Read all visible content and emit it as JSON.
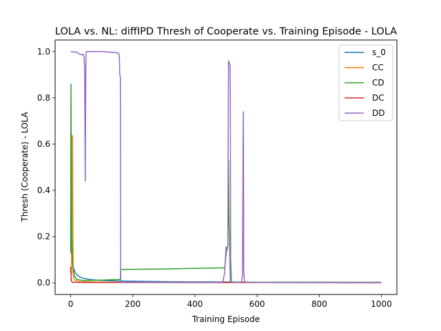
{
  "chart_data": {
    "type": "line",
    "title": "LOLA vs. NL: diffIPD Thresh of Cooperate vs. Training Episode - LOLA",
    "xlabel": "Training Episode",
    "ylabel": "Thresh (Cooperate) - LOLA",
    "xlim": [
      -50,
      1050
    ],
    "ylim": [
      -0.05,
      1.05
    ],
    "xticks": [
      0,
      200,
      400,
      600,
      800,
      1000
    ],
    "yticks": [
      0.0,
      0.2,
      0.4,
      0.6,
      0.8,
      1.0
    ],
    "xtick_labels": [
      "0",
      "200",
      "400",
      "600",
      "800",
      "1000"
    ],
    "ytick_labels": [
      "0.0",
      "0.2",
      "0.4",
      "0.6",
      "0.8",
      "1.0"
    ],
    "grid": false,
    "legend_position": "top-right",
    "series": [
      {
        "name": "s_0",
        "color": "#1f77b4",
        "points": [
          [
            0,
            0.31
          ],
          [
            1,
            0.2
          ],
          [
            2,
            0.14
          ],
          [
            4,
            0.1
          ],
          [
            6,
            0.08
          ],
          [
            10,
            0.06
          ],
          [
            15,
            0.045
          ],
          [
            20,
            0.035
          ],
          [
            30,
            0.025
          ],
          [
            40,
            0.02
          ],
          [
            60,
            0.015
          ],
          [
            100,
            0.01
          ],
          [
            160,
            0.008
          ],
          [
            300,
            0.005
          ],
          [
            500,
            0.004
          ],
          [
            600,
            0.003
          ],
          [
            1000,
            0.002
          ]
        ]
      },
      {
        "name": "CC",
        "color": "#ff7f0e",
        "points": [
          [
            0,
            0.07
          ],
          [
            1,
            0.05
          ],
          [
            3,
            0.04
          ],
          [
            4,
            0.64
          ],
          [
            6,
            0.63
          ],
          [
            8,
            0.05
          ],
          [
            10,
            0.02
          ],
          [
            15,
            0.01
          ],
          [
            30,
            0.005
          ],
          [
            100,
            0.003
          ],
          [
            300,
            0.002
          ],
          [
            1000,
            0.001
          ]
        ]
      },
      {
        "name": "CD",
        "color": "#2ca02c",
        "points": [
          [
            0,
            0.13
          ],
          [
            1,
            0.86
          ],
          [
            2,
            0.5
          ],
          [
            3,
            0.25
          ],
          [
            5,
            0.12
          ],
          [
            8,
            0.06
          ],
          [
            12,
            0.03
          ],
          [
            20,
            0.015
          ],
          [
            40,
            0.01
          ],
          [
            100,
            0.012
          ],
          [
            160,
            0.015
          ],
          [
            161,
            0.058
          ],
          [
            300,
            0.06
          ],
          [
            496,
            0.065
          ],
          [
            500,
            0.12
          ],
          [
            503,
            0.15
          ],
          [
            506,
            0.16
          ],
          [
            508,
            0.53
          ],
          [
            510,
            0.25
          ],
          [
            512,
            0.15
          ],
          [
            514,
            0.005
          ],
          [
            520,
            0.003
          ],
          [
            1000,
            0.002
          ]
        ]
      },
      {
        "name": "DC",
        "color": "#d62728",
        "points": [
          [
            0,
            0.07
          ],
          [
            2,
            0.01
          ],
          [
            5,
            0.003
          ],
          [
            20,
            0.002
          ],
          [
            1000,
            0.001
          ]
        ]
      },
      {
        "name": "DD",
        "color": "#9467bd",
        "points": [
          [
            0,
            1.0
          ],
          [
            20,
            0.997
          ],
          [
            28,
            0.99
          ],
          [
            36,
            0.985
          ],
          [
            40,
            0.99
          ],
          [
            43,
            0.98
          ],
          [
            45,
            0.93
          ],
          [
            46,
            0.7
          ],
          [
            47,
            0.44
          ],
          [
            48,
            0.7
          ],
          [
            49,
            0.95
          ],
          [
            50,
            1.0
          ],
          [
            100,
            1.0
          ],
          [
            150,
            0.995
          ],
          [
            155,
            0.99
          ],
          [
            157,
            0.97
          ],
          [
            158,
            0.9
          ],
          [
            160,
            0.89
          ],
          [
            161,
            0.003
          ],
          [
            300,
            0.002
          ],
          [
            480,
            0.002
          ],
          [
            490,
            0.005
          ],
          [
            495,
            0.04
          ],
          [
            498,
            0.1
          ],
          [
            500,
            0.155
          ],
          [
            503,
            0.14
          ],
          [
            506,
            0.16
          ],
          [
            508,
            0.96
          ],
          [
            511,
            0.95
          ],
          [
            513,
            0.94
          ],
          [
            514,
            0.8
          ],
          [
            515,
            0.1
          ],
          [
            518,
            0.002
          ],
          [
            549,
            0.002
          ],
          [
            553,
            0.03
          ],
          [
            555,
            0.6
          ],
          [
            556,
            0.74
          ],
          [
            557,
            0.05
          ],
          [
            560,
            0.002
          ],
          [
            1000,
            0.001
          ]
        ]
      }
    ]
  }
}
